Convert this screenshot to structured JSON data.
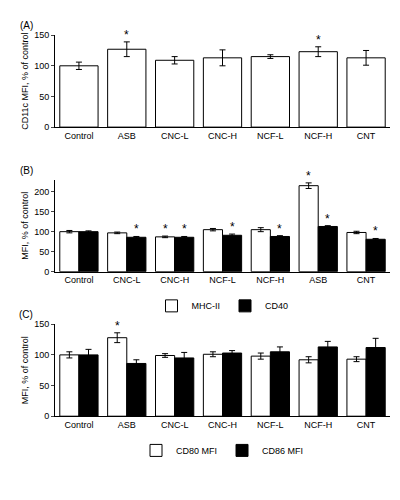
{
  "chart_data": [
    {
      "type": "bar",
      "label": "(A)",
      "y_label": "CD11c MFI, % of control",
      "categories": [
        "Control",
        "ASB",
        "CNC-L",
        "CNC-H",
        "NCF-L",
        "NCF-H",
        "CNT"
      ],
      "series": [
        {
          "color": "#ffffff",
          "values": [
            100,
            127,
            109,
            113,
            115,
            123,
            113
          ],
          "errors": [
            6,
            12,
            6,
            13,
            3,
            8,
            12
          ]
        }
      ],
      "ylim": [
        0,
        150
      ],
      "yticks": [
        0,
        50,
        100,
        150
      ],
      "grid": false,
      "annotations": [
        {
          "text": "*",
          "category": "ASB"
        },
        {
          "text": "*",
          "category": "NCF-H"
        }
      ]
    },
    {
      "type": "bar",
      "label": "(B)",
      "y_label": "MFI, % of control",
      "categories": [
        "Control",
        "CNC-L",
        "CNC-H",
        "NCF-L",
        "NCF-H",
        "ASB",
        "CNT"
      ],
      "series": [
        {
          "name": "MHC-II",
          "color": "#ffffff",
          "values": [
            100,
            97,
            87,
            105,
            105,
            215,
            98
          ],
          "errors": [
            3,
            2,
            2,
            3,
            5,
            7,
            3
          ]
        },
        {
          "name": "CD40",
          "color": "#000000",
          "values": [
            100,
            86,
            86,
            91,
            88,
            113,
            81
          ],
          "errors": [
            2,
            2,
            2,
            3,
            2,
            2,
            2
          ]
        }
      ],
      "ylim": [
        0,
        230
      ],
      "yticks": [
        0,
        50,
        100,
        150,
        200
      ],
      "grid": false,
      "legend": "bottom",
      "annotations": [
        {
          "text": "*",
          "category": "CNC-L",
          "series": "CD40"
        },
        {
          "text": "*",
          "category": "CNC-H",
          "series": "MHC-II"
        },
        {
          "text": "*",
          "category": "CNC-H",
          "series": "CD40"
        },
        {
          "text": "*",
          "category": "NCF-L",
          "series": "CD40"
        },
        {
          "text": "*",
          "category": "NCF-H",
          "series": "CD40"
        },
        {
          "text": "*",
          "category": "ASB",
          "series": "MHC-II"
        },
        {
          "text": "*",
          "category": "ASB",
          "series": "CD40"
        },
        {
          "text": "*",
          "category": "CNT",
          "series": "CD40"
        }
      ]
    },
    {
      "type": "bar",
      "label": "(C)",
      "y_label": "MFI, % of control",
      "categories": [
        "Control",
        "ASB",
        "CNC-L",
        "CNC-H",
        "NCF-L",
        "NCF-H",
        "CNT"
      ],
      "series": [
        {
          "name": "CD80 MFI",
          "color": "#ffffff",
          "values": [
            100,
            128,
            99,
            101,
            98,
            92,
            93
          ],
          "errors": [
            5,
            8,
            3,
            4,
            5,
            5,
            4
          ]
        },
        {
          "name": "CD86 MFI",
          "color": "#000000",
          "values": [
            100,
            86,
            95,
            103,
            105,
            113,
            112
          ],
          "errors": [
            9,
            6,
            9,
            4,
            8,
            9,
            15
          ]
        }
      ],
      "ylim": [
        0,
        150
      ],
      "yticks": [
        0,
        50,
        100,
        150
      ],
      "grid": false,
      "legend": "bottom",
      "annotations": [
        {
          "text": "*",
          "category": "ASB",
          "series": "CD80 MFI"
        }
      ]
    }
  ]
}
